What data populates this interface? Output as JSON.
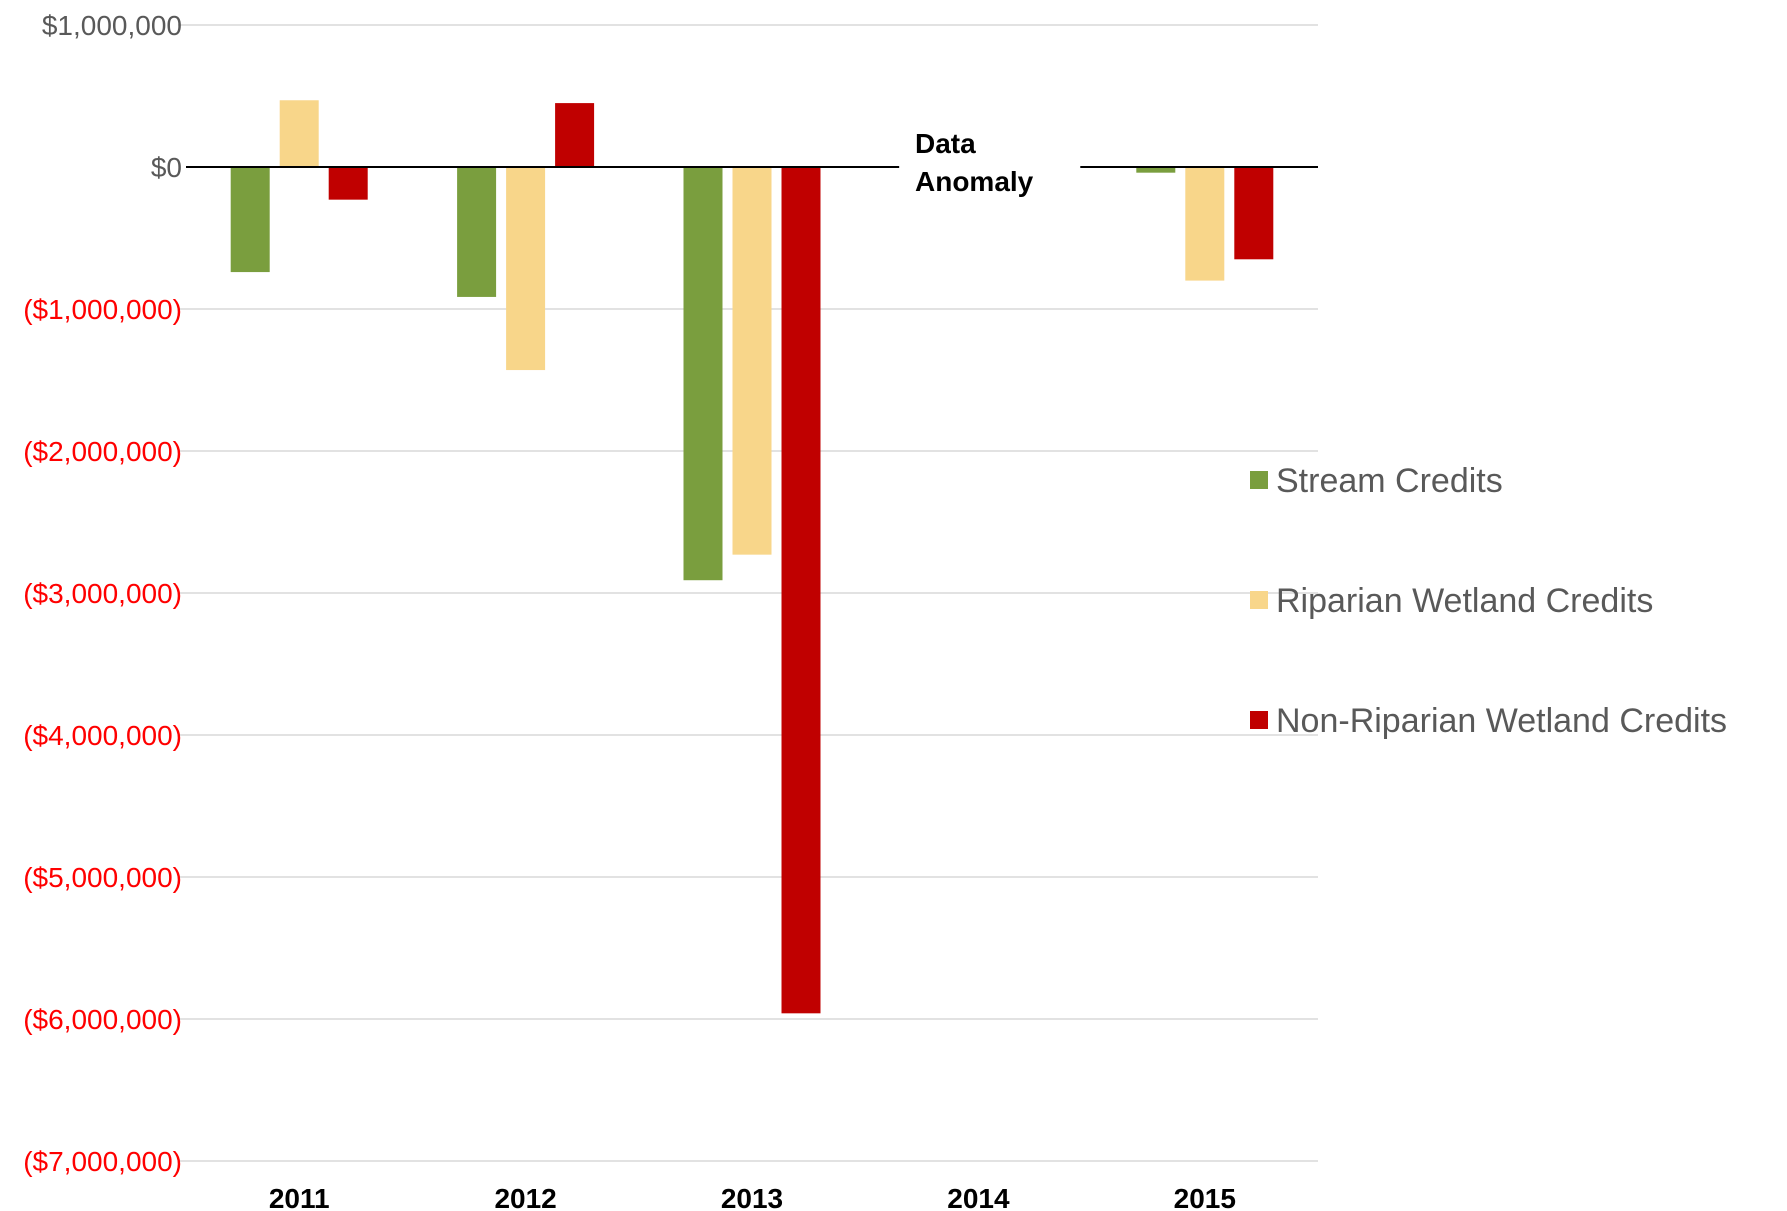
{
  "chart_data": {
    "type": "bar",
    "title": "",
    "xlabel": "",
    "ylabel": "",
    "categories": [
      "2011",
      "2012",
      "2013",
      "2014",
      "2015"
    ],
    "ylim": [
      -7000000,
      1000000
    ],
    "y_ticks": [
      {
        "value": 1000000,
        "label": "$1,000,000"
      },
      {
        "value": 0,
        "label": "$0"
      },
      {
        "value": -1000000,
        "label": "($1,000,000)"
      },
      {
        "value": -2000000,
        "label": "($2,000,000)"
      },
      {
        "value": -3000000,
        "label": "($3,000,000)"
      },
      {
        "value": -4000000,
        "label": "($4,000,000)"
      },
      {
        "value": -5000000,
        "label": "($5,000,000)"
      },
      {
        "value": -6000000,
        "label": "($6,000,000)"
      },
      {
        "value": -7000000,
        "label": "($7,000,000)"
      }
    ],
    "series": [
      {
        "name": "Stream Credits",
        "color": "#7a9e3e",
        "values": [
          -740000,
          -915000,
          -2910000,
          null,
          -40000
        ]
      },
      {
        "name": "Riparian Wetland Credits",
        "color": "#f8d68a",
        "values": [
          470000,
          -1430000,
          -2730000,
          null,
          -800000
        ]
      },
      {
        "name": "Non-Riparian Wetland Credits",
        "color": "#c00000",
        "values": [
          -230000,
          450000,
          -5960000,
          null,
          -650000
        ]
      }
    ],
    "annotations": [
      {
        "category": "2014",
        "text_lines": [
          "Data",
          "Anomaly"
        ]
      }
    ],
    "grid": true,
    "legend_position": "right",
    "colors": {
      "positive_tick": "#595959",
      "negative_tick": "#ff0000",
      "grid": "#d9d9d9",
      "zero_line": "#000000"
    }
  }
}
